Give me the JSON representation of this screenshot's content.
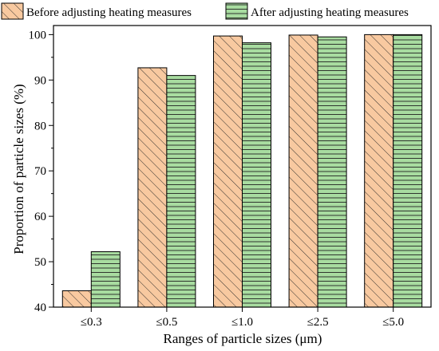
{
  "chart_data": {
    "type": "bar",
    "categories": [
      "≤0.3",
      "≤0.5",
      "≤1.0",
      "≤2.5",
      "≤5.0"
    ],
    "series": [
      {
        "name": "Before adjusting heating measures",
        "values": [
          43.6,
          92.7,
          99.7,
          99.9,
          100
        ],
        "color": "#f8c9a0",
        "pattern": "diagonal-hatch"
      },
      {
        "name": "After adjusting heating measures",
        "values": [
          52.2,
          91.0,
          98.2,
          99.5,
          100
        ],
        "color": "#a8dca0",
        "pattern": "horizontal-hatch"
      }
    ],
    "xlabel": "Ranges of particle sizes (μm)",
    "ylabel": "Proportion of particle sizes (%)",
    "ylim": [
      40,
      102
    ],
    "yticks": [
      40,
      50,
      60,
      70,
      80,
      90,
      100
    ],
    "grid": false,
    "legend_position": "top"
  }
}
